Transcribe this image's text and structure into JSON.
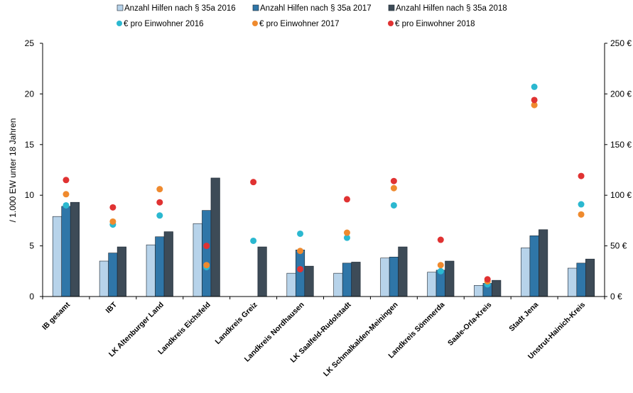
{
  "chart_data": {
    "type": "bar",
    "categories": [
      "IB gesamt",
      "IBT",
      "LK Altenburger Land",
      "Landkreis Eichsfeld",
      "Landkreis Greiz",
      "Landkreis Nordhausen",
      "LK Saalfeld-Rudolstadt",
      "LK Schmalkalden-Meiningen",
      "Landkreis Sömmerda",
      "Saale-Orla-Kreis",
      "Stadt Jena",
      "Unstrut-Hainich-Kreis"
    ],
    "series": [
      {
        "name": "Anzahl Hilfen nach § 35a 2016",
        "type": "bar",
        "axis": "left",
        "color": "#b7d3ea",
        "values": [
          7.9,
          3.5,
          5.1,
          7.2,
          null,
          2.3,
          2.3,
          3.8,
          2.4,
          1.1,
          4.8,
          2.8
        ]
      },
      {
        "name": "Anzahl Hilfen nach § 35a 2017",
        "type": "bar",
        "axis": "left",
        "color": "#2f76a8",
        "values": [
          8.9,
          4.3,
          5.9,
          8.5,
          null,
          4.6,
          3.3,
          3.9,
          2.6,
          1.3,
          6.0,
          3.3
        ]
      },
      {
        "name": "Anzahl Hilfen nach § 35a 2018",
        "type": "bar",
        "axis": "left",
        "color": "#3d4b57",
        "values": [
          9.3,
          4.9,
          6.4,
          11.7,
          4.9,
          3.0,
          3.4,
          4.9,
          3.5,
          1.6,
          6.6,
          3.7
        ]
      },
      {
        "name": "€ pro Einwohner 2016",
        "type": "scatter",
        "axis": "right",
        "color": "#2bb8d0",
        "values": [
          90,
          71,
          80,
          29,
          55,
          62,
          58,
          90,
          25,
          12,
          207,
          91
        ]
      },
      {
        "name": "€ pro Einwohner 2017",
        "type": "scatter",
        "axis": "right",
        "color": "#ef8a2e",
        "values": [
          101,
          74,
          106,
          31,
          null,
          45,
          63,
          107,
          31,
          15,
          189,
          81
        ]
      },
      {
        "name": "€ pro Einwohner 2018",
        "type": "scatter",
        "axis": "right",
        "color": "#e03232",
        "values": [
          115,
          88,
          93,
          50,
          113,
          27,
          96,
          114,
          56,
          17,
          194,
          119
        ]
      }
    ],
    "ylabel": "/ 1.000 EW unter 18 Jahren",
    "ylim": [
      0,
      25
    ],
    "yticks": [
      "0",
      "5",
      "10",
      "15",
      "20",
      "25"
    ],
    "y2lim": [
      0,
      250
    ],
    "y2ticks": [
      "0 €",
      "50 €",
      "100 €",
      "150 €",
      "200 €",
      "250 €"
    ],
    "grid": false,
    "legend_placement": "top-center"
  }
}
